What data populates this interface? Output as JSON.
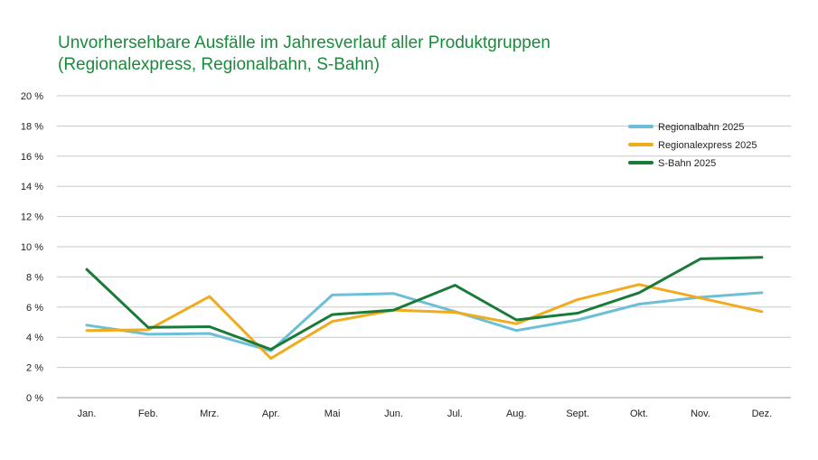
{
  "title_line1": "Unvorhersehbare Ausfälle im Jahresverlauf aller Produktgruppen",
  "title_line2": "(Regionalexpress, Regionalbahn, S-Bahn)",
  "chart_data": {
    "type": "line",
    "title": "Unvorhersehbare Ausfälle im Jahresverlauf aller Produktgruppen (Regionalexpress, Regionalbahn, S-Bahn)",
    "categories": [
      "Jan.",
      "Feb.",
      "Mrz.",
      "Apr.",
      "Mai",
      "Jun.",
      "Jul.",
      "Aug.",
      "Sept.",
      "Okt.",
      "Nov.",
      "Dez."
    ],
    "ylim": [
      0,
      20
    ],
    "yticks": [
      0,
      2,
      4,
      6,
      8,
      10,
      12,
      14,
      16,
      18,
      20
    ],
    "ytick_labels": [
      "0 %",
      "2 %",
      "4 %",
      "6 %",
      "8 %",
      "10 %",
      "12 %",
      "14 %",
      "16 %",
      "18 %",
      "20 %"
    ],
    "grid": true,
    "legend_position": "top-right",
    "series": [
      {
        "name": "Regionalbahn 2025",
        "color": "#6cbfd6",
        "values": [
          4.8,
          4.2,
          4.25,
          3.1,
          6.8,
          6.9,
          5.7,
          4.45,
          5.15,
          6.2,
          6.65,
          6.95
        ]
      },
      {
        "name": "Regionalexpress 2025",
        "color": "#f0ab1e",
        "values": [
          4.45,
          4.5,
          6.7,
          2.6,
          5.05,
          5.8,
          5.65,
          4.9,
          6.5,
          7.5,
          6.6,
          5.7
        ]
      },
      {
        "name": "S-Bahn 2025",
        "color": "#1a7a3a",
        "values": [
          8.5,
          4.65,
          4.7,
          3.2,
          5.5,
          5.8,
          7.45,
          5.15,
          5.6,
          6.95,
          9.2,
          9.3
        ]
      }
    ]
  }
}
